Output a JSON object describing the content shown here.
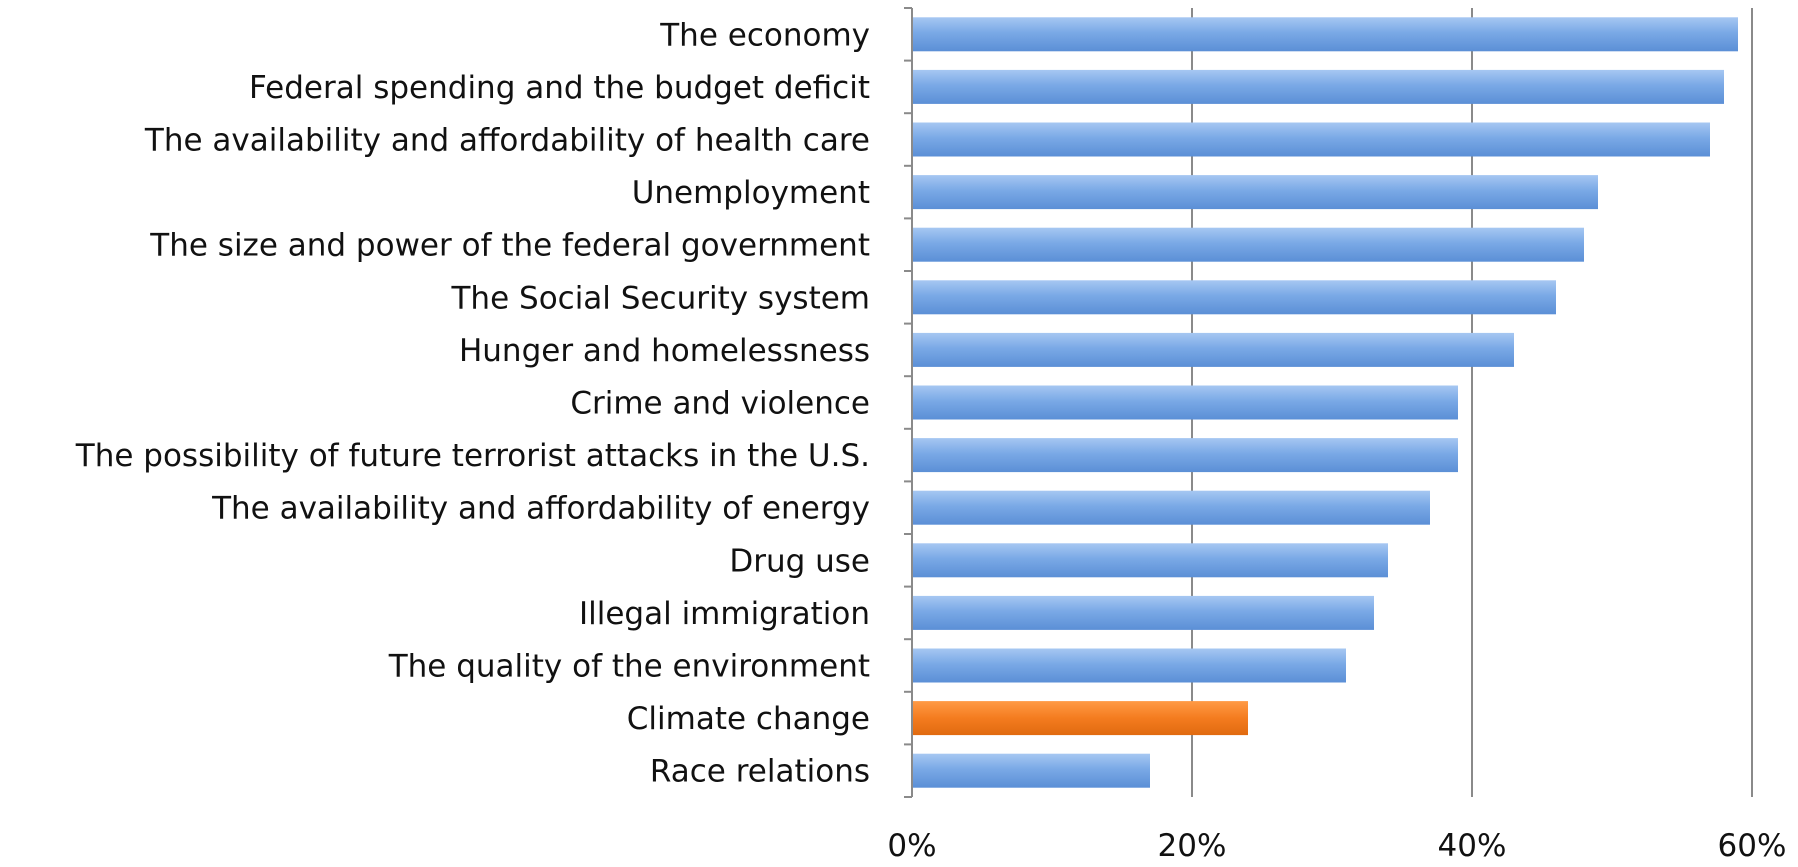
{
  "chart_data": {
    "type": "bar",
    "orientation": "horizontal",
    "categories": [
      "The economy",
      "Federal spending and the budget deficit",
      "The availability and affordability of health care",
      "Unemployment",
      "The size and power of the federal government",
      "The Social Security system",
      "Hunger and homelessness",
      "Crime and violence",
      "The possibility of future terrorist attacks in the U.S.",
      "The availability and affordability of energy",
      "Drug use",
      "Illegal immigration",
      "The quality of the environment",
      "Climate change",
      "Race relations"
    ],
    "values": [
      59,
      58,
      57,
      49,
      48,
      46,
      43,
      39,
      39,
      37,
      34,
      33,
      31,
      24,
      17
    ],
    "bar_colors": [
      "#7aa9e6",
      "#7aa9e6",
      "#7aa9e6",
      "#7aa9e6",
      "#7aa9e6",
      "#7aa9e6",
      "#7aa9e6",
      "#7aa9e6",
      "#7aa9e6",
      "#7aa9e6",
      "#7aa9e6",
      "#7aa9e6",
      "#7aa9e6",
      "#f47c1f",
      "#7aa9e6"
    ],
    "xlim": [
      0,
      60
    ],
    "xticks": [
      0,
      20,
      40,
      60
    ],
    "xtick_labels": [
      "0%",
      "20%",
      "40%",
      "60%"
    ],
    "grid": "vertical",
    "title": "",
    "xlabel": "",
    "ylabel": ""
  }
}
